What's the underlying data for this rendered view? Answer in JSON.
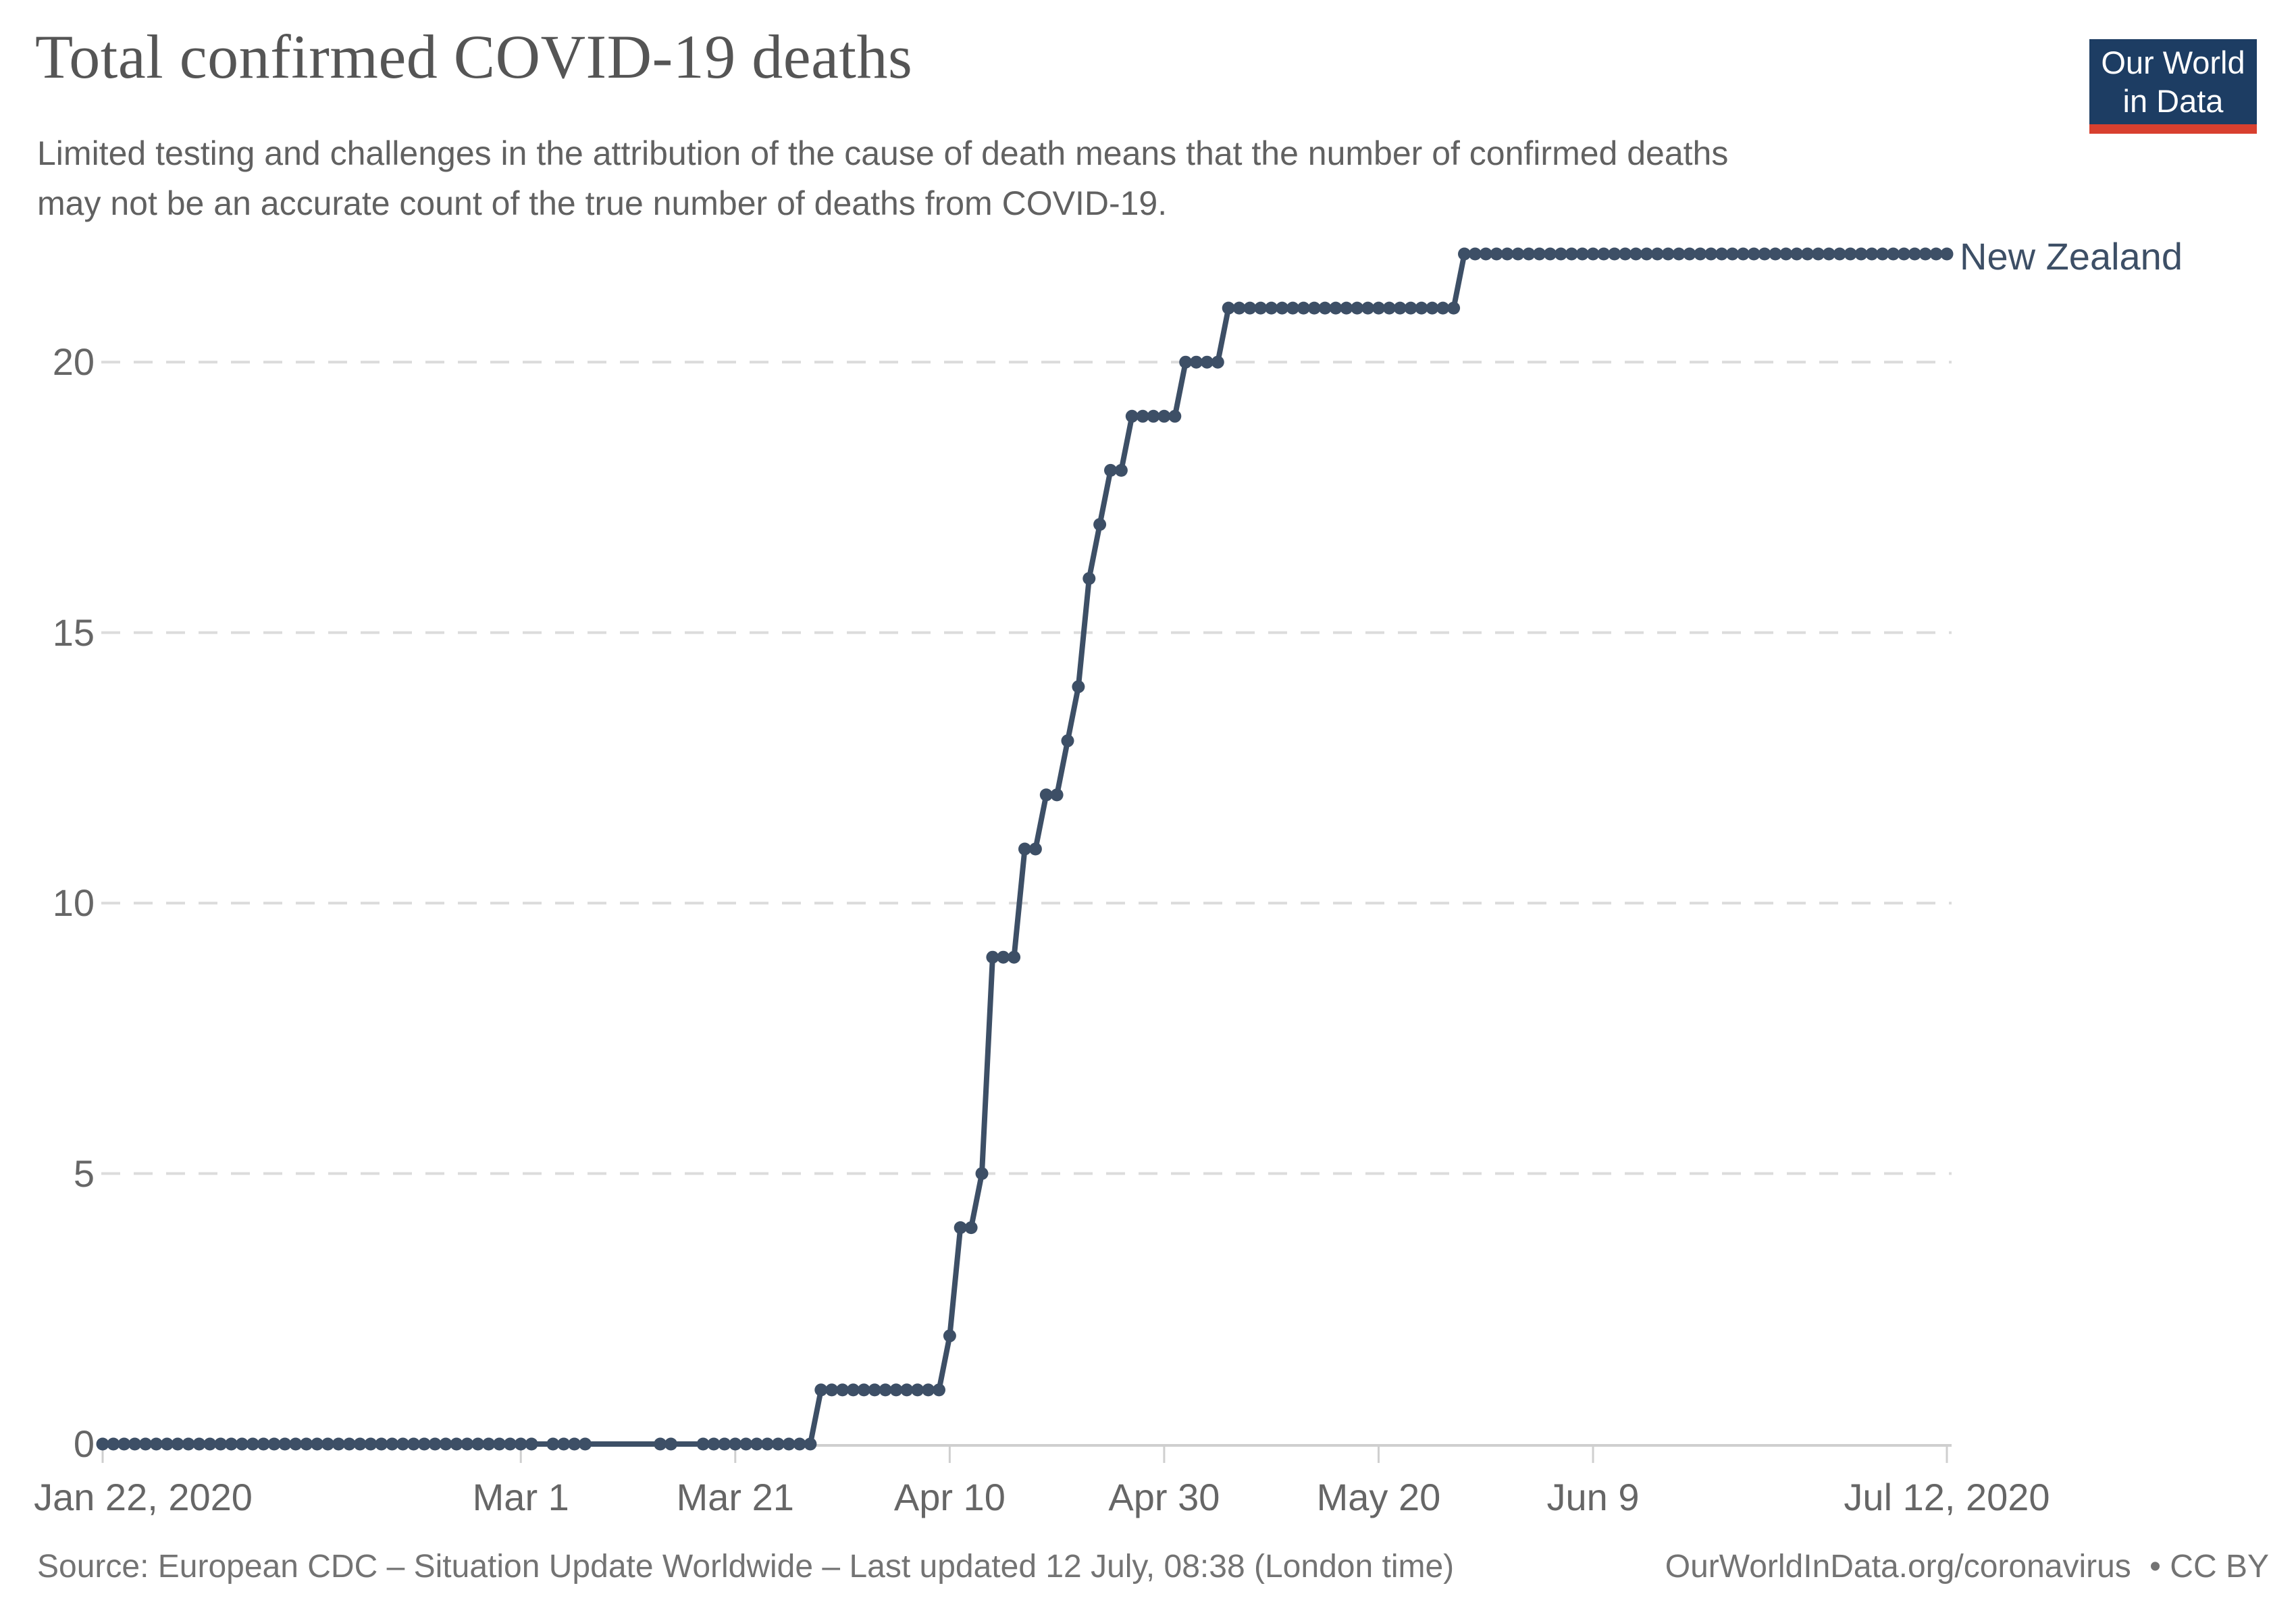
{
  "title": "Total confirmed COVID-19 deaths",
  "subtitle_line1": "Limited testing and challenges in the attribution of the cause of death means that the number of confirmed deaths",
  "subtitle_line2": "may not be an accurate count of the true number of deaths from COVID-19.",
  "logo": {
    "line1": "Our World",
    "line2": "in Data"
  },
  "entity_label": "New Zealand",
  "footer": {
    "source": "Source: European CDC – Situation Update Worldwide – Last updated 12 July, 08:38 (London time)",
    "link": "OurWorldInData.org/coronavirus",
    "license": "• CC BY"
  },
  "colors": {
    "line": "#3d4f66",
    "grid": "#dcdcdc",
    "axis": "#cfcfcf",
    "tick_text": "#666666",
    "title_text": "#555555",
    "subtitle_text": "#616161",
    "footer_text": "#737373",
    "logo_bg": "#1d3d63",
    "logo_stripe": "#d8402f"
  },
  "chart_data": {
    "type": "line",
    "title": "Total confirmed COVID-19 deaths",
    "x_start_date": "Jan 22, 2020",
    "x_end_date": "Jul 12, 2020",
    "x_unit": "days since Jan 22, 2020",
    "ylim": [
      0,
      22
    ],
    "grid": true,
    "legend_position": "end-of-line-label",
    "y_ticks": [
      "0",
      "5",
      "10",
      "15",
      "20"
    ],
    "x_ticks": [
      {
        "label": "Jan 22, 2020",
        "day": 0
      },
      {
        "label": "Mar 1",
        "day": 39
      },
      {
        "label": "Mar 21",
        "day": 59
      },
      {
        "label": "Apr 10",
        "day": 79
      },
      {
        "label": "Apr 30",
        "day": 99
      },
      {
        "label": "May 20",
        "day": 119
      },
      {
        "label": "Jun 9",
        "day": 139
      },
      {
        "label": "Jul 12, 2020",
        "day": 172
      }
    ],
    "series": [
      {
        "name": "New Zealand",
        "color": "#3d4f66",
        "points": [
          [
            0,
            0
          ],
          [
            1,
            0
          ],
          [
            2,
            0
          ],
          [
            3,
            0
          ],
          [
            4,
            0
          ],
          [
            5,
            0
          ],
          [
            6,
            0
          ],
          [
            7,
            0
          ],
          [
            8,
            0
          ],
          [
            9,
            0
          ],
          [
            10,
            0
          ],
          [
            11,
            0
          ],
          [
            12,
            0
          ],
          [
            13,
            0
          ],
          [
            14,
            0
          ],
          [
            15,
            0
          ],
          [
            16,
            0
          ],
          [
            17,
            0
          ],
          [
            18,
            0
          ],
          [
            19,
            0
          ],
          [
            20,
            0
          ],
          [
            21,
            0
          ],
          [
            22,
            0
          ],
          [
            23,
            0
          ],
          [
            24,
            0
          ],
          [
            25,
            0
          ],
          [
            26,
            0
          ],
          [
            27,
            0
          ],
          [
            28,
            0
          ],
          [
            29,
            0
          ],
          [
            30,
            0
          ],
          [
            31,
            0
          ],
          [
            32,
            0
          ],
          [
            33,
            0
          ],
          [
            34,
            0
          ],
          [
            35,
            0
          ],
          [
            36,
            0
          ],
          [
            37,
            0
          ],
          [
            38,
            0
          ],
          [
            39,
            0
          ],
          [
            40,
            0
          ],
          [
            42,
            0
          ],
          [
            43,
            0
          ],
          [
            44,
            0
          ],
          [
            45,
            0
          ],
          [
            52,
            0
          ],
          [
            53,
            0
          ],
          [
            56,
            0
          ],
          [
            57,
            0
          ],
          [
            58,
            0
          ],
          [
            59,
            0
          ],
          [
            60,
            0
          ],
          [
            61,
            0
          ],
          [
            62,
            0
          ],
          [
            63,
            0
          ],
          [
            64,
            0
          ],
          [
            65,
            0
          ],
          [
            66,
            0
          ],
          [
            67,
            1
          ],
          [
            68,
            1
          ],
          [
            69,
            1
          ],
          [
            70,
            1
          ],
          [
            71,
            1
          ],
          [
            72,
            1
          ],
          [
            73,
            1
          ],
          [
            74,
            1
          ],
          [
            75,
            1
          ],
          [
            76,
            1
          ],
          [
            77,
            1
          ],
          [
            78,
            1
          ],
          [
            79,
            2
          ],
          [
            80,
            4
          ],
          [
            81,
            4
          ],
          [
            82,
            5
          ],
          [
            83,
            9
          ],
          [
            84,
            9
          ],
          [
            85,
            9
          ],
          [
            86,
            11
          ],
          [
            87,
            11
          ],
          [
            88,
            12
          ],
          [
            89,
            12
          ],
          [
            90,
            13
          ],
          [
            91,
            14
          ],
          [
            92,
            16
          ],
          [
            93,
            17
          ],
          [
            94,
            18
          ],
          [
            95,
            18
          ],
          [
            96,
            19
          ],
          [
            97,
            19
          ],
          [
            98,
            19
          ],
          [
            99,
            19
          ],
          [
            100,
            19
          ],
          [
            101,
            20
          ],
          [
            102,
            20
          ],
          [
            103,
            20
          ],
          [
            104,
            20
          ],
          [
            105,
            21
          ],
          [
            106,
            21
          ],
          [
            107,
            21
          ],
          [
            108,
            21
          ],
          [
            109,
            21
          ],
          [
            110,
            21
          ],
          [
            111,
            21
          ],
          [
            112,
            21
          ],
          [
            113,
            21
          ],
          [
            114,
            21
          ],
          [
            115,
            21
          ],
          [
            116,
            21
          ],
          [
            117,
            21
          ],
          [
            118,
            21
          ],
          [
            119,
            21
          ],
          [
            120,
            21
          ],
          [
            121,
            21
          ],
          [
            122,
            21
          ],
          [
            123,
            21
          ],
          [
            124,
            21
          ],
          [
            125,
            21
          ],
          [
            126,
            21
          ],
          [
            127,
            22
          ],
          [
            128,
            22
          ],
          [
            129,
            22
          ],
          [
            130,
            22
          ],
          [
            131,
            22
          ],
          [
            132,
            22
          ],
          [
            133,
            22
          ],
          [
            134,
            22
          ],
          [
            135,
            22
          ],
          [
            136,
            22
          ],
          [
            137,
            22
          ],
          [
            138,
            22
          ],
          [
            139,
            22
          ],
          [
            140,
            22
          ],
          [
            141,
            22
          ],
          [
            142,
            22
          ],
          [
            143,
            22
          ],
          [
            144,
            22
          ],
          [
            145,
            22
          ],
          [
            146,
            22
          ],
          [
            147,
            22
          ],
          [
            148,
            22
          ],
          [
            149,
            22
          ],
          [
            150,
            22
          ],
          [
            151,
            22
          ],
          [
            152,
            22
          ],
          [
            153,
            22
          ],
          [
            154,
            22
          ],
          [
            155,
            22
          ],
          [
            156,
            22
          ],
          [
            157,
            22
          ],
          [
            158,
            22
          ],
          [
            159,
            22
          ],
          [
            160,
            22
          ],
          [
            161,
            22
          ],
          [
            162,
            22
          ],
          [
            163,
            22
          ],
          [
            164,
            22
          ],
          [
            165,
            22
          ],
          [
            166,
            22
          ],
          [
            167,
            22
          ],
          [
            168,
            22
          ],
          [
            169,
            22
          ],
          [
            170,
            22
          ],
          [
            171,
            22
          ],
          [
            172,
            22
          ]
        ]
      }
    ]
  }
}
